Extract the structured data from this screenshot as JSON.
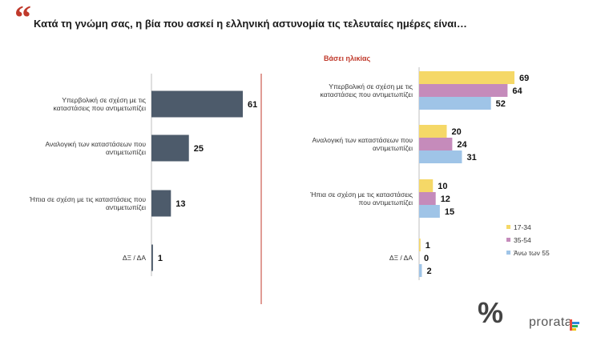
{
  "title": "Κατά τη γνώμη σας, η βία που ασκεί η ελληνική αστυνομία τις τελευταίες ημέρες είναι…",
  "brand": "prorata",
  "brand_symbol": "%",
  "colors": {
    "total": "#4d5b6b",
    "s1": "#f5d867",
    "s2": "#c58bbb",
    "s3": "#9fc4e7",
    "accent": "#c0392b"
  },
  "chart_data": [
    {
      "type": "bar",
      "orientation": "horizontal",
      "categories": [
        [
          "Υπερβολική σε σχέση με τις",
          "καταστάσεις που αντιμετωπίζει"
        ],
        [
          "Αναλογική των καταστάσεων που",
          "αντιμετωπίζει"
        ],
        [
          "Ήπια σε σχέση με τις καταστάσεις που",
          "αντιμετωπίζει"
        ],
        [
          "ΔΞ / ΔΑ"
        ]
      ],
      "series": [
        {
          "values": [
            61,
            25,
            13,
            1
          ]
        }
      ]
    },
    {
      "type": "bar",
      "orientation": "horizontal",
      "subtitle": "Βάσει ηλικίας",
      "categories": [
        [
          "Υπερβολική σε σχέση με τις",
          "καταστάσεις που αντιμετωπίζει"
        ],
        [
          "Αναλογική των καταστάσεων που",
          "αντιμετωπίζει"
        ],
        [
          "Ήπια σε σχέση με τις καταστάσεις",
          "που αντιμετωπίζει"
        ],
        [
          "ΔΞ / ΔΑ"
        ]
      ],
      "series": [
        {
          "name": "17-34",
          "values": [
            69,
            20,
            10,
            1
          ]
        },
        {
          "name": "35-54",
          "values": [
            64,
            24,
            12,
            0
          ]
        },
        {
          "name": "Άνω των 55",
          "values": [
            52,
            31,
            15,
            2
          ]
        }
      ],
      "legend_position": "bottom-right"
    }
  ]
}
